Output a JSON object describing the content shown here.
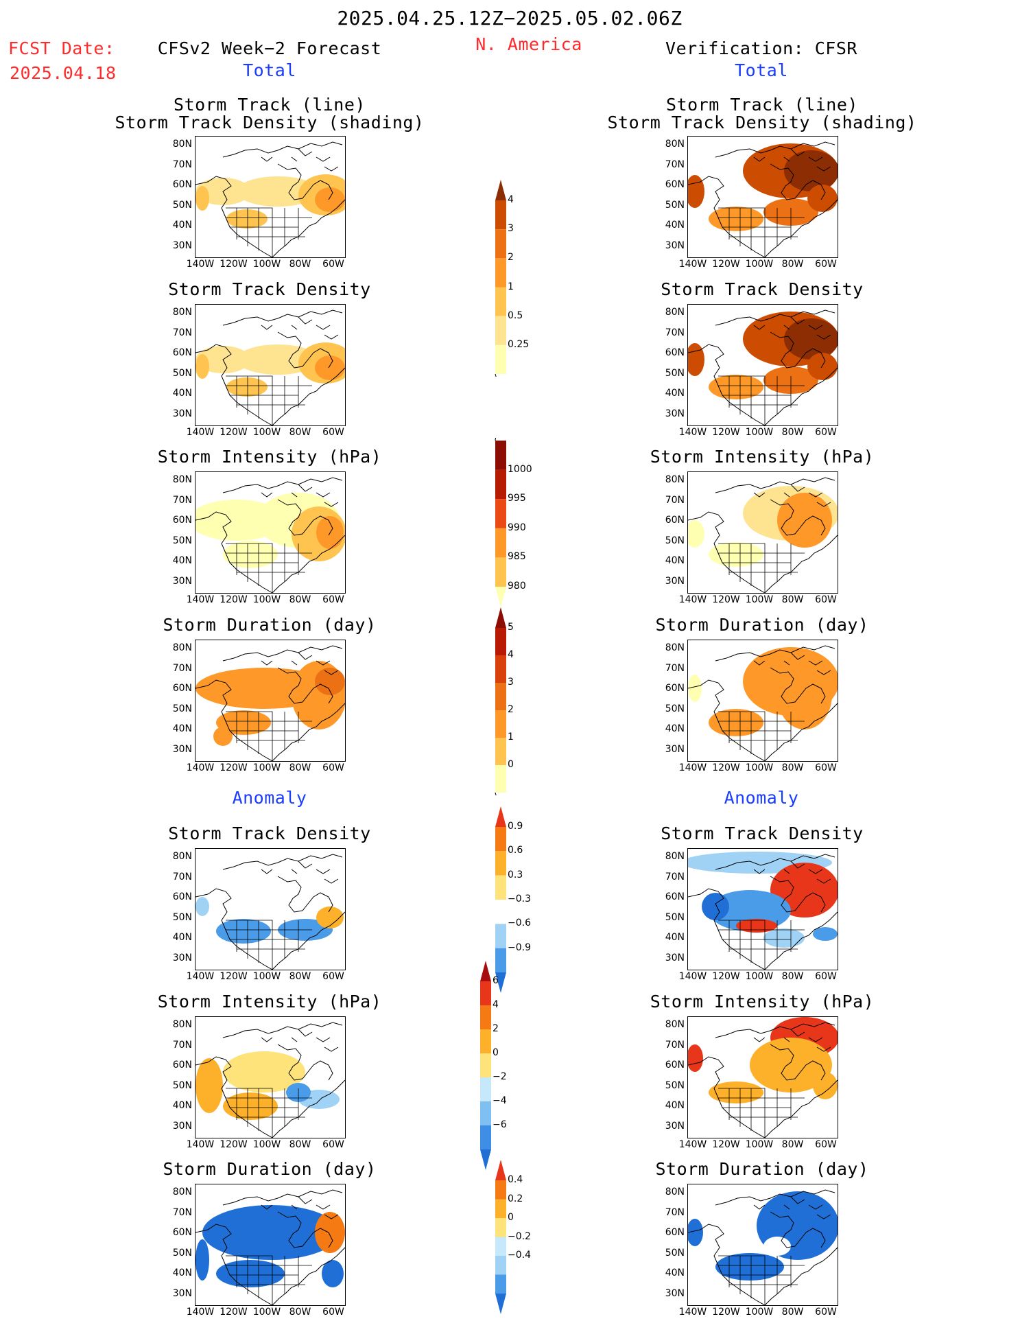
{
  "header": {
    "period": "2025.04.25.12Z−2025.05.02.06Z",
    "region": "N. America",
    "fcst_label": "FCST Date:",
    "fcst_date": "2025.04.18",
    "left_title": "CFSv2 Week−2 Forecast",
    "right_title": "Verification: CFSR",
    "total_label": "Total",
    "anomaly_label": "Anomaly"
  },
  "axes": {
    "lat_labels": [
      "80N",
      "70N",
      "60N",
      "50N",
      "40N",
      "30N"
    ],
    "lon_labels": [
      "140W",
      "120W",
      "100W",
      "80W",
      "60W"
    ]
  },
  "panels": [
    {
      "title1": "Storm Track (line)",
      "title2": "Storm Track Density (shading)"
    },
    {
      "title1": "Storm Track Density",
      "title2": ""
    },
    {
      "title1": "Storm Intensity (hPa)",
      "title2": ""
    },
    {
      "title1": "Storm Duration (day)",
      "title2": ""
    },
    {
      "title1": "Storm Track Density",
      "title2": ""
    },
    {
      "title1": "Storm Intensity (hPa)",
      "title2": ""
    },
    {
      "title1": "Storm Duration (day)",
      "title2": ""
    }
  ],
  "colorbars": [
    {
      "labels": [
        "4",
        "3",
        "2",
        "1",
        "0.5",
        "0.25"
      ],
      "colors": [
        "#ffffb2",
        "#fee391",
        "#fec44f",
        "#fe9929",
        "#ec7014",
        "#cc4c02",
        "#8c2d04"
      ]
    },
    {
      "labels": [
        "1000",
        "995",
        "990",
        "985",
        "980"
      ],
      "colors": [
        "#ffffb2",
        "#fec44f",
        "#fe9929",
        "#ec4a14",
        "#b51c02",
        "#8c0d04"
      ]
    },
    {
      "labels": [
        "5",
        "4",
        "3",
        "2",
        "1",
        "0"
      ],
      "colors": [
        "#ffffb2",
        "#fec44f",
        "#fe9929",
        "#ec7014",
        "#d8400c",
        "#b81a04",
        "#8c0d04"
      ]
    },
    {
      "labels": [
        "0.9",
        "0.6",
        "0.3",
        "−0.3",
        "−0.6",
        "−0.9"
      ],
      "colors": [
        "#1f6fd6",
        "#4a9be8",
        "#9fd2f5",
        "#ffffff",
        "#fde37a",
        "#fdb02a",
        "#f57a14",
        "#e8361a"
      ]
    },
    {
      "labels": [
        "6",
        "4",
        "2",
        "0",
        "−2",
        "−4",
        "−6"
      ],
      "colors": [
        "#1f6fd6",
        "#3e8ee6",
        "#7fbff2",
        "#c5e8fb",
        "#fde37a",
        "#fdb02a",
        "#f57a14",
        "#e8361a",
        "#a80d0d"
      ]
    },
    {
      "labels": [
        "0.4",
        "0.2",
        "0",
        "−0.2",
        "−0.4"
      ],
      "colors": [
        "#1f6fd6",
        "#4a9be8",
        "#9fd2f5",
        "#c5e8fb",
        "#fde37a",
        "#fdb02a",
        "#f57a14",
        "#e8361a"
      ]
    }
  ]
}
